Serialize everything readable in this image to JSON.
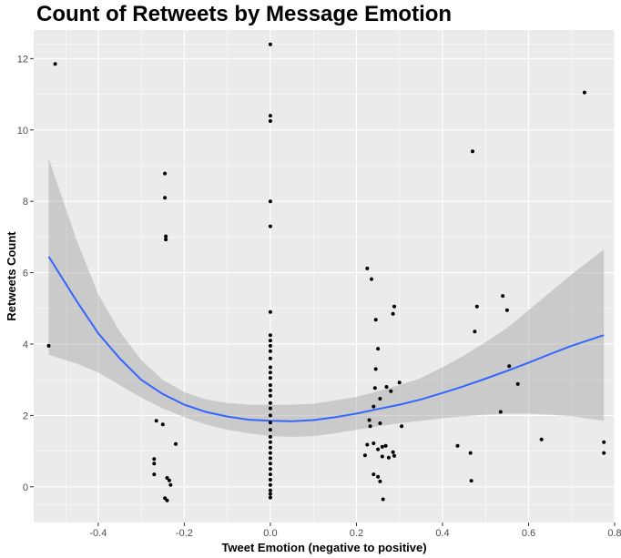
{
  "chart_data": {
    "type": "scatter",
    "title": "Count of Retweets by Message Emotion",
    "xlabel": "Tweet Emotion (negative to positive)",
    "ylabel": "Retweets Count",
    "xlim": [
      -0.55,
      0.8
    ],
    "ylim": [
      -1.0,
      12.8
    ],
    "x_ticks": [
      -0.4,
      -0.2,
      0.0,
      0.2,
      0.4,
      0.6,
      0.8
    ],
    "x_tick_labels": [
      "-0.4",
      "-0.2",
      "0.0",
      "0.2",
      "0.4",
      "0.6",
      "0.8"
    ],
    "y_ticks": [
      0,
      2,
      4,
      6,
      8,
      10,
      12
    ],
    "y_tick_labels": [
      "0",
      "2",
      "4",
      "6",
      "8",
      "10",
      "12"
    ],
    "grid": true,
    "legend": "none",
    "colors": {
      "panel_background": "#ebebeb",
      "grid_major": "#ffffff",
      "points": "#000000",
      "smooth_line": "#3366ff",
      "confidence_band": "#999999"
    },
    "points": [
      [
        -0.515,
        3.95
      ],
      [
        -0.5,
        11.85
      ],
      [
        -0.245,
        8.78
      ],
      [
        -0.245,
        8.1
      ],
      [
        -0.243,
        7.02
      ],
      [
        -0.243,
        6.93
      ],
      [
        -0.265,
        1.85
      ],
      [
        -0.25,
        1.75
      ],
      [
        -0.22,
        1.2
      ],
      [
        -0.27,
        0.78
      ],
      [
        -0.27,
        0.65
      ],
      [
        -0.27,
        0.35
      ],
      [
        -0.24,
        0.25
      ],
      [
        -0.235,
        0.18
      ],
      [
        -0.232,
        0.05
      ],
      [
        -0.245,
        -0.32
      ],
      [
        -0.24,
        -0.38
      ],
      [
        0.0,
        12.4
      ],
      [
        0.0,
        10.4
      ],
      [
        0.0,
        10.25
      ],
      [
        0.0,
        8.0
      ],
      [
        0.0,
        7.3
      ],
      [
        0.0,
        4.9
      ],
      [
        0.0,
        4.25
      ],
      [
        0.0,
        4.1
      ],
      [
        0.0,
        3.95
      ],
      [
        0.0,
        3.8
      ],
      [
        0.0,
        3.6
      ],
      [
        0.0,
        3.35
      ],
      [
        0.0,
        3.2
      ],
      [
        0.0,
        3.05
      ],
      [
        0.0,
        2.85
      ],
      [
        0.0,
        2.7
      ],
      [
        0.0,
        2.55
      ],
      [
        0.0,
        2.35
      ],
      [
        0.0,
        2.2
      ],
      [
        0.0,
        2.0
      ],
      [
        0.0,
        1.8
      ],
      [
        0.0,
        1.6
      ],
      [
        0.0,
        1.4
      ],
      [
        0.0,
        1.25
      ],
      [
        0.0,
        1.1
      ],
      [
        0.0,
        0.95
      ],
      [
        0.0,
        0.8
      ],
      [
        0.0,
        0.65
      ],
      [
        0.0,
        0.5
      ],
      [
        0.0,
        0.35
      ],
      [
        0.0,
        0.2
      ],
      [
        0.0,
        0.05
      ],
      [
        0.0,
        -0.1
      ],
      [
        0.0,
        -0.2
      ],
      [
        0.0,
        -0.3
      ],
      [
        0.225,
        6.12
      ],
      [
        0.235,
        5.82
      ],
      [
        0.245,
        4.68
      ],
      [
        0.25,
        3.87
      ],
      [
        0.245,
        3.3
      ],
      [
        0.243,
        2.77
      ],
      [
        0.255,
        2.47
      ],
      [
        0.24,
        2.25
      ],
      [
        0.23,
        1.87
      ],
      [
        0.232,
        1.7
      ],
      [
        0.255,
        1.78
      ],
      [
        0.225,
        1.18
      ],
      [
        0.22,
        0.88
      ],
      [
        0.24,
        1.22
      ],
      [
        0.25,
        1.05
      ],
      [
        0.26,
        0.85
      ],
      [
        0.275,
        0.82
      ],
      [
        0.268,
        1.15
      ],
      [
        0.285,
        0.97
      ],
      [
        0.288,
        0.87
      ],
      [
        0.26,
        1.12
      ],
      [
        0.27,
        2.8
      ],
      [
        0.28,
        2.68
      ],
      [
        0.285,
        4.85
      ],
      [
        0.288,
        5.05
      ],
      [
        0.305,
        1.7
      ],
      [
        0.3,
        2.92
      ],
      [
        0.24,
        0.35
      ],
      [
        0.25,
        0.28
      ],
      [
        0.255,
        0.15
      ],
      [
        0.262,
        -0.35
      ],
      [
        0.435,
        1.15
      ],
      [
        0.465,
        0.95
      ],
      [
        0.467,
        0.17
      ],
      [
        0.47,
        9.4
      ],
      [
        0.475,
        4.35
      ],
      [
        0.48,
        5.05
      ],
      [
        0.535,
        2.1
      ],
      [
        0.54,
        5.35
      ],
      [
        0.55,
        4.95
      ],
      [
        0.555,
        3.38
      ],
      [
        0.575,
        2.88
      ],
      [
        0.63,
        1.33
      ],
      [
        0.73,
        11.05
      ],
      [
        0.775,
        1.25
      ],
      [
        0.775,
        0.95
      ]
    ],
    "smooth": [
      {
        "x": -0.515,
        "y": 6.45,
        "lo": 3.7,
        "hi": 9.2
      },
      {
        "x": -0.45,
        "y": 5.2,
        "lo": 3.45,
        "hi": 6.9
      },
      {
        "x": -0.4,
        "y": 4.3,
        "lo": 3.2,
        "hi": 5.4
      },
      {
        "x": -0.35,
        "y": 3.6,
        "lo": 2.85,
        "hi": 4.35
      },
      {
        "x": -0.3,
        "y": 3.0,
        "lo": 2.5,
        "hi": 3.55
      },
      {
        "x": -0.25,
        "y": 2.6,
        "lo": 2.2,
        "hi": 3.0
      },
      {
        "x": -0.2,
        "y": 2.3,
        "lo": 1.95,
        "hi": 2.65
      },
      {
        "x": -0.15,
        "y": 2.1,
        "lo": 1.75,
        "hi": 2.45
      },
      {
        "x": -0.1,
        "y": 1.97,
        "lo": 1.6,
        "hi": 2.35
      },
      {
        "x": -0.05,
        "y": 1.88,
        "lo": 1.5,
        "hi": 2.3
      },
      {
        "x": 0.0,
        "y": 1.85,
        "lo": 1.42,
        "hi": 2.3
      },
      {
        "x": 0.05,
        "y": 1.84,
        "lo": 1.4,
        "hi": 2.3
      },
      {
        "x": 0.1,
        "y": 1.87,
        "lo": 1.42,
        "hi": 2.33
      },
      {
        "x": 0.15,
        "y": 1.95,
        "lo": 1.5,
        "hi": 2.42
      },
      {
        "x": 0.2,
        "y": 2.05,
        "lo": 1.6,
        "hi": 2.52
      },
      {
        "x": 0.25,
        "y": 2.18,
        "lo": 1.7,
        "hi": 2.68
      },
      {
        "x": 0.3,
        "y": 2.3,
        "lo": 1.78,
        "hi": 2.85
      },
      {
        "x": 0.35,
        "y": 2.45,
        "lo": 1.85,
        "hi": 3.05
      },
      {
        "x": 0.4,
        "y": 2.63,
        "lo": 1.92,
        "hi": 3.35
      },
      {
        "x": 0.45,
        "y": 2.82,
        "lo": 1.98,
        "hi": 3.68
      },
      {
        "x": 0.5,
        "y": 3.03,
        "lo": 2.02,
        "hi": 4.05
      },
      {
        "x": 0.55,
        "y": 3.25,
        "lo": 2.05,
        "hi": 4.45
      },
      {
        "x": 0.6,
        "y": 3.48,
        "lo": 2.05,
        "hi": 4.95
      },
      {
        "x": 0.65,
        "y": 3.72,
        "lo": 2.02,
        "hi": 5.45
      },
      {
        "x": 0.7,
        "y": 3.95,
        "lo": 1.98,
        "hi": 5.95
      },
      {
        "x": 0.775,
        "y": 4.25,
        "lo": 1.85,
        "hi": 6.65
      }
    ]
  }
}
